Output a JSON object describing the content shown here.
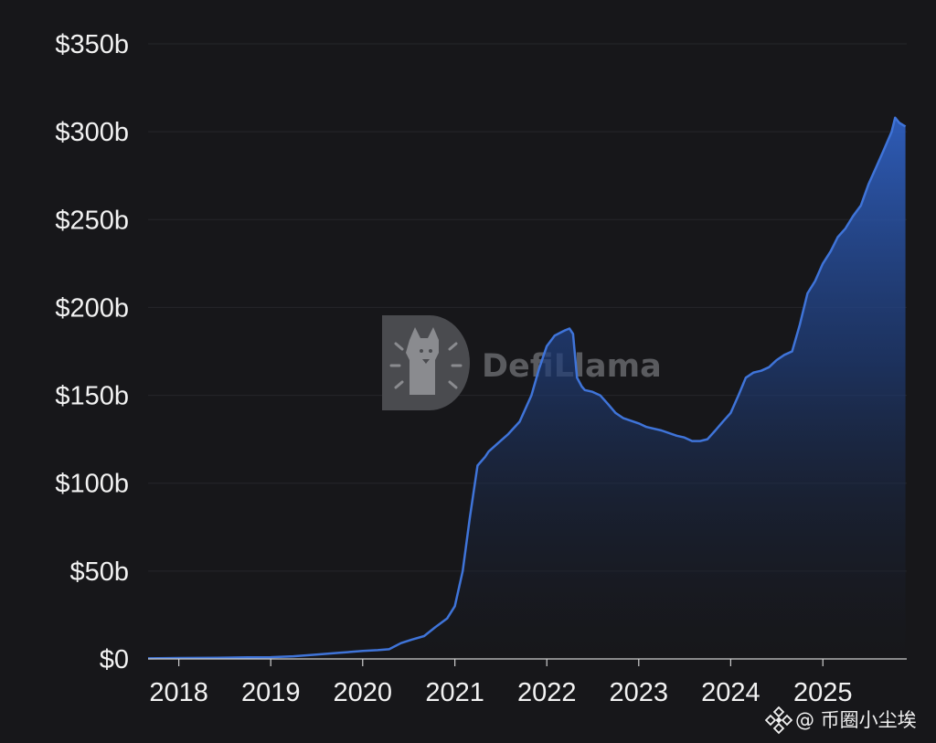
{
  "chart_data": {
    "type": "area",
    "title": "",
    "xlabel": "",
    "ylabel": "",
    "ylim": [
      0,
      350
    ],
    "xlim": [
      "2017-09-01",
      "2025-11-30"
    ],
    "y_ticks": [
      {
        "value": 0,
        "label": "$0"
      },
      {
        "value": 50,
        "label": "$50b"
      },
      {
        "value": 100,
        "label": "$100b"
      },
      {
        "value": 150,
        "label": "$150b"
      },
      {
        "value": 200,
        "label": "$200b"
      },
      {
        "value": 250,
        "label": "$250b"
      },
      {
        "value": 300,
        "label": "$300b"
      },
      {
        "value": 350,
        "label": "$350b"
      }
    ],
    "x_ticks": [
      {
        "value": "2018-01-01",
        "label": "2018"
      },
      {
        "value": "2019-01-01",
        "label": "2019"
      },
      {
        "value": "2020-01-01",
        "label": "2020"
      },
      {
        "value": "2021-01-01",
        "label": "2021"
      },
      {
        "value": "2022-01-01",
        "label": "2022"
      },
      {
        "value": "2023-01-01",
        "label": "2023"
      },
      {
        "value": "2024-01-01",
        "label": "2024"
      },
      {
        "value": "2025-01-01",
        "label": "2025"
      }
    ],
    "grid": "horizontal",
    "colors": {
      "line": "#3f74d9",
      "fill_top": "#2f5fbf",
      "fill_bottom": "#17171a",
      "grid": "#26272b"
    },
    "series": [
      {
        "x": [
          "2017-09-01",
          "2018-01-01",
          "2018-06-01",
          "2018-10-01",
          "2019-01-01",
          "2019-04-01",
          "2019-07-01",
          "2019-10-01",
          "2020-01-01",
          "2020-03-01",
          "2020-04-15",
          "2020-06-01",
          "2020-07-15",
          "2020-09-01",
          "2020-10-15",
          "2020-12-01",
          "2021-01-01",
          "2021-02-01",
          "2021-03-01",
          "2021-04-01",
          "2021-05-01",
          "2021-05-15",
          "2021-06-15",
          "2021-08-01",
          "2021-09-15",
          "2021-11-01",
          "2021-12-01",
          "2022-01-01",
          "2022-02-01",
          "2022-03-01",
          "2022-03-15",
          "2022-04-01",
          "2022-04-15",
          "2022-05-01",
          "2022-05-20",
          "2022-06-01",
          "2022-07-01",
          "2022-08-01",
          "2022-09-01",
          "2022-10-01",
          "2022-11-01",
          "2023-01-01",
          "2023-02-01",
          "2023-04-01",
          "2023-06-01",
          "2023-07-01",
          "2023-08-01",
          "2023-09-01",
          "2023-10-01",
          "2023-11-01",
          "2023-12-01",
          "2024-01-01",
          "2024-02-01",
          "2024-03-01",
          "2024-04-01",
          "2024-05-01",
          "2024-06-01",
          "2024-07-01",
          "2024-08-01",
          "2024-09-01",
          "2024-10-01",
          "2024-11-01",
          "2024-12-01",
          "2025-01-01",
          "2025-02-01",
          "2025-03-01",
          "2025-04-01",
          "2025-05-01",
          "2025-06-01",
          "2025-07-01",
          "2025-08-01",
          "2025-09-01",
          "2025-10-01",
          "2025-10-15",
          "2025-11-01",
          "2025-11-25"
        ],
        "values": [
          0.3,
          0.5,
          0.7,
          0.9,
          1,
          1.5,
          2.5,
          3.5,
          4.5,
          5,
          5.5,
          9,
          11,
          13,
          18,
          23,
          30,
          50,
          80,
          110,
          115,
          118,
          122,
          128,
          135,
          150,
          165,
          178,
          184,
          186,
          187,
          188,
          185,
          160,
          155,
          153,
          152,
          150,
          145,
          140,
          137,
          134,
          132,
          130,
          127,
          126,
          124,
          124,
          125,
          130,
          135,
          140,
          150,
          160,
          163,
          164,
          166,
          170,
          173,
          175,
          190,
          208,
          215,
          225,
          232,
          240,
          245,
          252,
          258,
          270,
          280,
          290,
          300,
          308,
          305,
          303
        ]
      }
    ]
  },
  "watermark": {
    "text": "DefiLlama",
    "icon": "llama-logo-icon"
  },
  "credit": {
    "icon": "binance-logo-icon",
    "text": "@ 币圈小尘埃"
  }
}
